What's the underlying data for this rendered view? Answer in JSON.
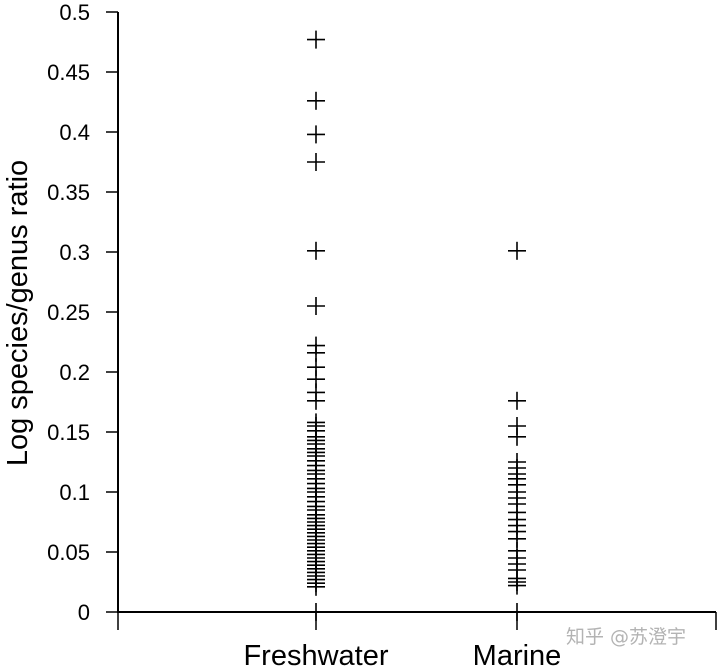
{
  "chart_data": {
    "type": "scatter",
    "title": "",
    "xlabel": "",
    "ylabel": "Log species/genus ratio",
    "categories": [
      "Freshwater",
      "Marine"
    ],
    "ylim": [
      0,
      0.5
    ],
    "yticks": [
      "0",
      "0.05",
      "0.1",
      "0.15",
      "0.2",
      "0.25",
      "0.3",
      "0.35",
      "0.4",
      "0.45",
      "0.5"
    ],
    "grid": false,
    "legend": "none",
    "marker": "plus",
    "color": "#000000",
    "series": [
      {
        "category": "Freshwater",
        "values": [
          0.477,
          0.426,
          0.398,
          0.375,
          0.301,
          0.255,
          0.222,
          0.216,
          0.204,
          0.194,
          0.183,
          0.176,
          0.158,
          0.155,
          0.151,
          0.146,
          0.143,
          0.14,
          0.136,
          0.133,
          0.13,
          0.126,
          0.122,
          0.118,
          0.115,
          0.111,
          0.107,
          0.103,
          0.1,
          0.096,
          0.092,
          0.088,
          0.085,
          0.081,
          0.078,
          0.075,
          0.072,
          0.069,
          0.066,
          0.063,
          0.06,
          0.057,
          0.054,
          0.051,
          0.048,
          0.045,
          0.042,
          0.039,
          0.036,
          0.033,
          0.03,
          0.027,
          0.024,
          0.021,
          0.0
        ]
      },
      {
        "category": "Marine",
        "values": [
          0.301,
          0.176,
          0.155,
          0.146,
          0.125,
          0.12,
          0.115,
          0.111,
          0.106,
          0.1,
          0.095,
          0.09,
          0.083,
          0.077,
          0.072,
          0.067,
          0.061,
          0.051,
          0.045,
          0.04,
          0.035,
          0.028,
          0.025,
          0.022,
          0.0
        ]
      }
    ]
  },
  "watermark": "知乎 @苏澄宇"
}
